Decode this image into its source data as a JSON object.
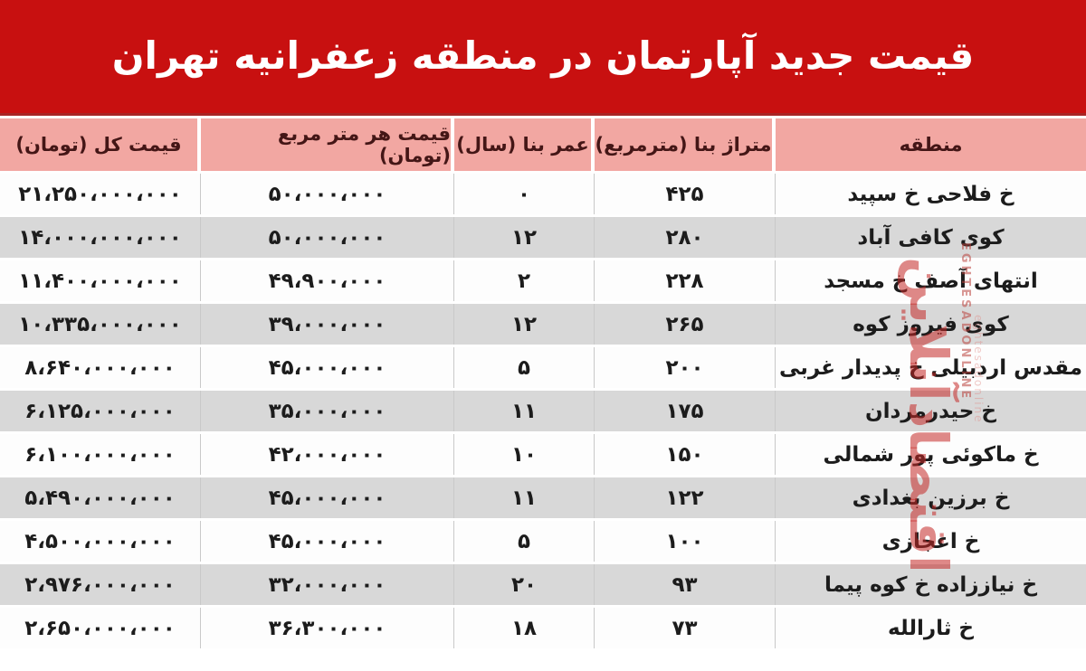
{
  "banner": {
    "title": "قیمت جدید آپارتمان در منطقه  زعفرانیه تهران"
  },
  "colors": {
    "banner_bg": "#c81010",
    "header_bg": "#f2a7a2",
    "header_text": "#441616",
    "row_alt_bg": "#d8d8d8",
    "row_bg": "#fdfdfd"
  },
  "table": {
    "columns": {
      "region": "منطقه",
      "area": "متراژ بنا (مترمربع)",
      "age": "عمر بنا (سال)",
      "ppm": "قیمت هر متر مربع (تومان)",
      "total": "قیمت کل (تومان)"
    },
    "rows": [
      {
        "region": "خ فلاحی خ سپید",
        "area": "۴۲۵",
        "age": "۰",
        "ppm": "۵۰،۰۰۰،۰۰۰",
        "total": "۲۱،۲۵۰،۰۰۰،۰۰۰"
      },
      {
        "region": "کوی کافی آباد",
        "area": "۲۸۰",
        "age": "۱۲",
        "ppm": "۵۰،۰۰۰،۰۰۰",
        "total": "۱۴،۰۰۰،۰۰۰،۰۰۰"
      },
      {
        "region": "انتهای آصف خ مسجد",
        "area": "۲۲۸",
        "age": "۲",
        "ppm": "۴۹،۹۰۰،۰۰۰",
        "total": "۱۱،۴۰۰،۰۰۰،۰۰۰"
      },
      {
        "region": "کوی فیروز کوه",
        "area": "۲۶۵",
        "age": "۱۲",
        "ppm": "۳۹،۰۰۰،۰۰۰",
        "total": "۱۰،۳۳۵،۰۰۰،۰۰۰"
      },
      {
        "region": "مقدس اردبیلی خ پدیدار غربی",
        "area": "۲۰۰",
        "age": "۵",
        "ppm": "۴۵،۰۰۰،۰۰۰",
        "total": "۸،۶۴۰،۰۰۰،۰۰۰"
      },
      {
        "region": "خ حیدرمردان",
        "area": "۱۷۵",
        "age": "۱۱",
        "ppm": "۳۵،۰۰۰،۰۰۰",
        "total": "۶،۱۲۵،۰۰۰،۰۰۰"
      },
      {
        "region": "خ ماکوئی پور شمالی",
        "area": "۱۵۰",
        "age": "۱۰",
        "ppm": "۴۲،۰۰۰،۰۰۰",
        "total": "۶،۱۰۰،۰۰۰،۰۰۰"
      },
      {
        "region": "خ برزین بغدادی",
        "area": "۱۲۲",
        "age": "۱۱",
        "ppm": "۴۵،۰۰۰،۰۰۰",
        "total": "۵،۴۹۰،۰۰۰،۰۰۰"
      },
      {
        "region": "خ اعجازی",
        "area": "۱۰۰",
        "age": "۵",
        "ppm": "۴۵،۰۰۰،۰۰۰",
        "total": "۴،۵۰۰،۰۰۰،۰۰۰"
      },
      {
        "region": "خ نیاززاده خ کوه پیما",
        "area": "۹۳",
        "age": "۲۰",
        "ppm": "۳۲،۰۰۰،۰۰۰",
        "total": "۲،۹۷۶،۰۰۰،۰۰۰"
      },
      {
        "region": "خ ثارالله",
        "area": "۷۳",
        "age": "۱۸",
        "ppm": "۳۶،۳۰۰،۰۰۰",
        "total": "۲،۶۵۰،۰۰۰،۰۰۰"
      }
    ]
  },
  "watermark": {
    "persian": "اقتصادآنلاین",
    "latin": "EGHTESADONLINE",
    "url": "eghtesadonline"
  },
  "chart_data": {
    "type": "table",
    "title": "قیمت جدید آپارتمان در منطقه زعفرانیه تهران",
    "title_en": "New apartment prices in Zafaraniyeh district, Tehran",
    "columns": [
      "منطقه",
      "متراژ بنا (مترمربع)",
      "عمر بنا (سال)",
      "قیمت هر متر مربع (تومان)",
      "قیمت کل (تومان)"
    ],
    "rows": [
      [
        "خ فلاحی خ سپید",
        425,
        0,
        50000000,
        21250000000
      ],
      [
        "کوی کافی آباد",
        280,
        12,
        50000000,
        14000000000
      ],
      [
        "انتهای آصف خ مسجد",
        228,
        2,
        49900000,
        11400000000
      ],
      [
        "کوی فیروز کوه",
        265,
        12,
        39000000,
        10335000000
      ],
      [
        "مقدس اردبیلی خ پدیدار غربی",
        200,
        5,
        45000000,
        8640000000
      ],
      [
        "خ حیدرمردان",
        175,
        11,
        35000000,
        6125000000
      ],
      [
        "خ ماکوئی پور شمالی",
        150,
        10,
        42000000,
        6100000000
      ],
      [
        "خ برزین بغدادی",
        122,
        11,
        45000000,
        5490000000
      ],
      [
        "خ اعجازی",
        100,
        5,
        45000000,
        4500000000
      ],
      [
        "خ نیاززاده خ کوه پیما",
        93,
        20,
        32000000,
        2976000000
      ],
      [
        "خ ثارالله",
        73,
        18,
        36300000,
        2650000000
      ]
    ],
    "units": {
      "area": "square meters",
      "age": "years",
      "prices": "Toman"
    }
  }
}
